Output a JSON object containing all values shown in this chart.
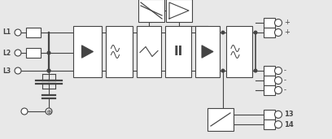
{
  "figsize": [
    4.08,
    1.71
  ],
  "dpi": 100,
  "bg_color": "#e8e8e8",
  "line_color": "#444444",
  "lw": 0.8,
  "label_color": "#111111",
  "xlim": [
    0,
    408
  ],
  "ylim": [
    0,
    171
  ]
}
